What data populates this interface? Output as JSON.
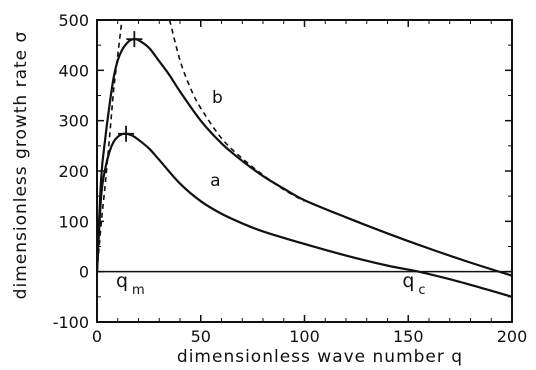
{
  "chart_data": {
    "type": "line",
    "title": "",
    "xlabel": "dimensionless wave number q",
    "ylabel": "dimensionless growth rate σ",
    "xlim": [
      0,
      200
    ],
    "ylim": [
      -100,
      500
    ],
    "x_ticks": [
      "0",
      "50",
      "100",
      "150",
      "200"
    ],
    "y_ticks": [
      "500",
      "400",
      "300",
      "200",
      "100",
      "0",
      "-100"
    ],
    "grid": false,
    "legend": "none",
    "series": [
      {
        "name": "a",
        "style": "solid",
        "x": [
          0,
          2,
          4,
          6,
          8,
          10,
          12,
          14,
          16,
          18,
          20,
          25,
          30,
          40,
          50,
          60,
          70,
          80,
          100,
          120,
          140,
          155,
          170,
          185,
          200
        ],
        "y": [
          0,
          150,
          205,
          238,
          258,
          268,
          273,
          274,
          272,
          268,
          262,
          245,
          222,
          175,
          140,
          115,
          96,
          80,
          55,
          32,
          12,
          0,
          -15,
          -32,
          -50
        ]
      },
      {
        "name": "b",
        "style": "solid",
        "x": [
          0,
          2,
          4,
          6,
          8,
          10,
          12,
          14,
          16,
          18,
          20,
          25,
          30,
          35,
          40,
          50,
          60,
          70,
          80,
          90,
          100,
          120,
          140,
          160,
          180,
          200
        ],
        "y": [
          0,
          185,
          265,
          330,
          385,
          420,
          440,
          452,
          460,
          462,
          460,
          445,
          418,
          390,
          358,
          300,
          255,
          220,
          190,
          165,
          142,
          108,
          76,
          46,
          18,
          -8
        ]
      },
      {
        "name": "asymptote-small-q",
        "style": "dashed",
        "x": [
          0,
          2,
          4,
          6,
          8,
          10,
          12
        ],
        "y": [
          0,
          95,
          175,
          265,
          360,
          430,
          500
        ]
      },
      {
        "name": "asymptote-large-q",
        "style": "dashed",
        "x": [
          35,
          40,
          45,
          50,
          60,
          70,
          80,
          90,
          100
        ],
        "y": [
          500,
          420,
          365,
          325,
          265,
          225,
          192,
          163,
          140
        ]
      }
    ],
    "markers": [
      {
        "series": "a",
        "x": 14,
        "y": 274,
        "symbol": "+"
      },
      {
        "series": "b",
        "x": 18,
        "y": 462,
        "symbol": "+"
      }
    ],
    "curve_labels": [
      {
        "text": "a",
        "x": 57,
        "y": 170
      },
      {
        "text": "b",
        "x": 58,
        "y": 335
      }
    ],
    "annotations": [
      {
        "main": "q",
        "sub": "m",
        "x": 14,
        "y": -30
      },
      {
        "main": "q",
        "sub": "c",
        "x": 152,
        "y": -30
      }
    ]
  }
}
